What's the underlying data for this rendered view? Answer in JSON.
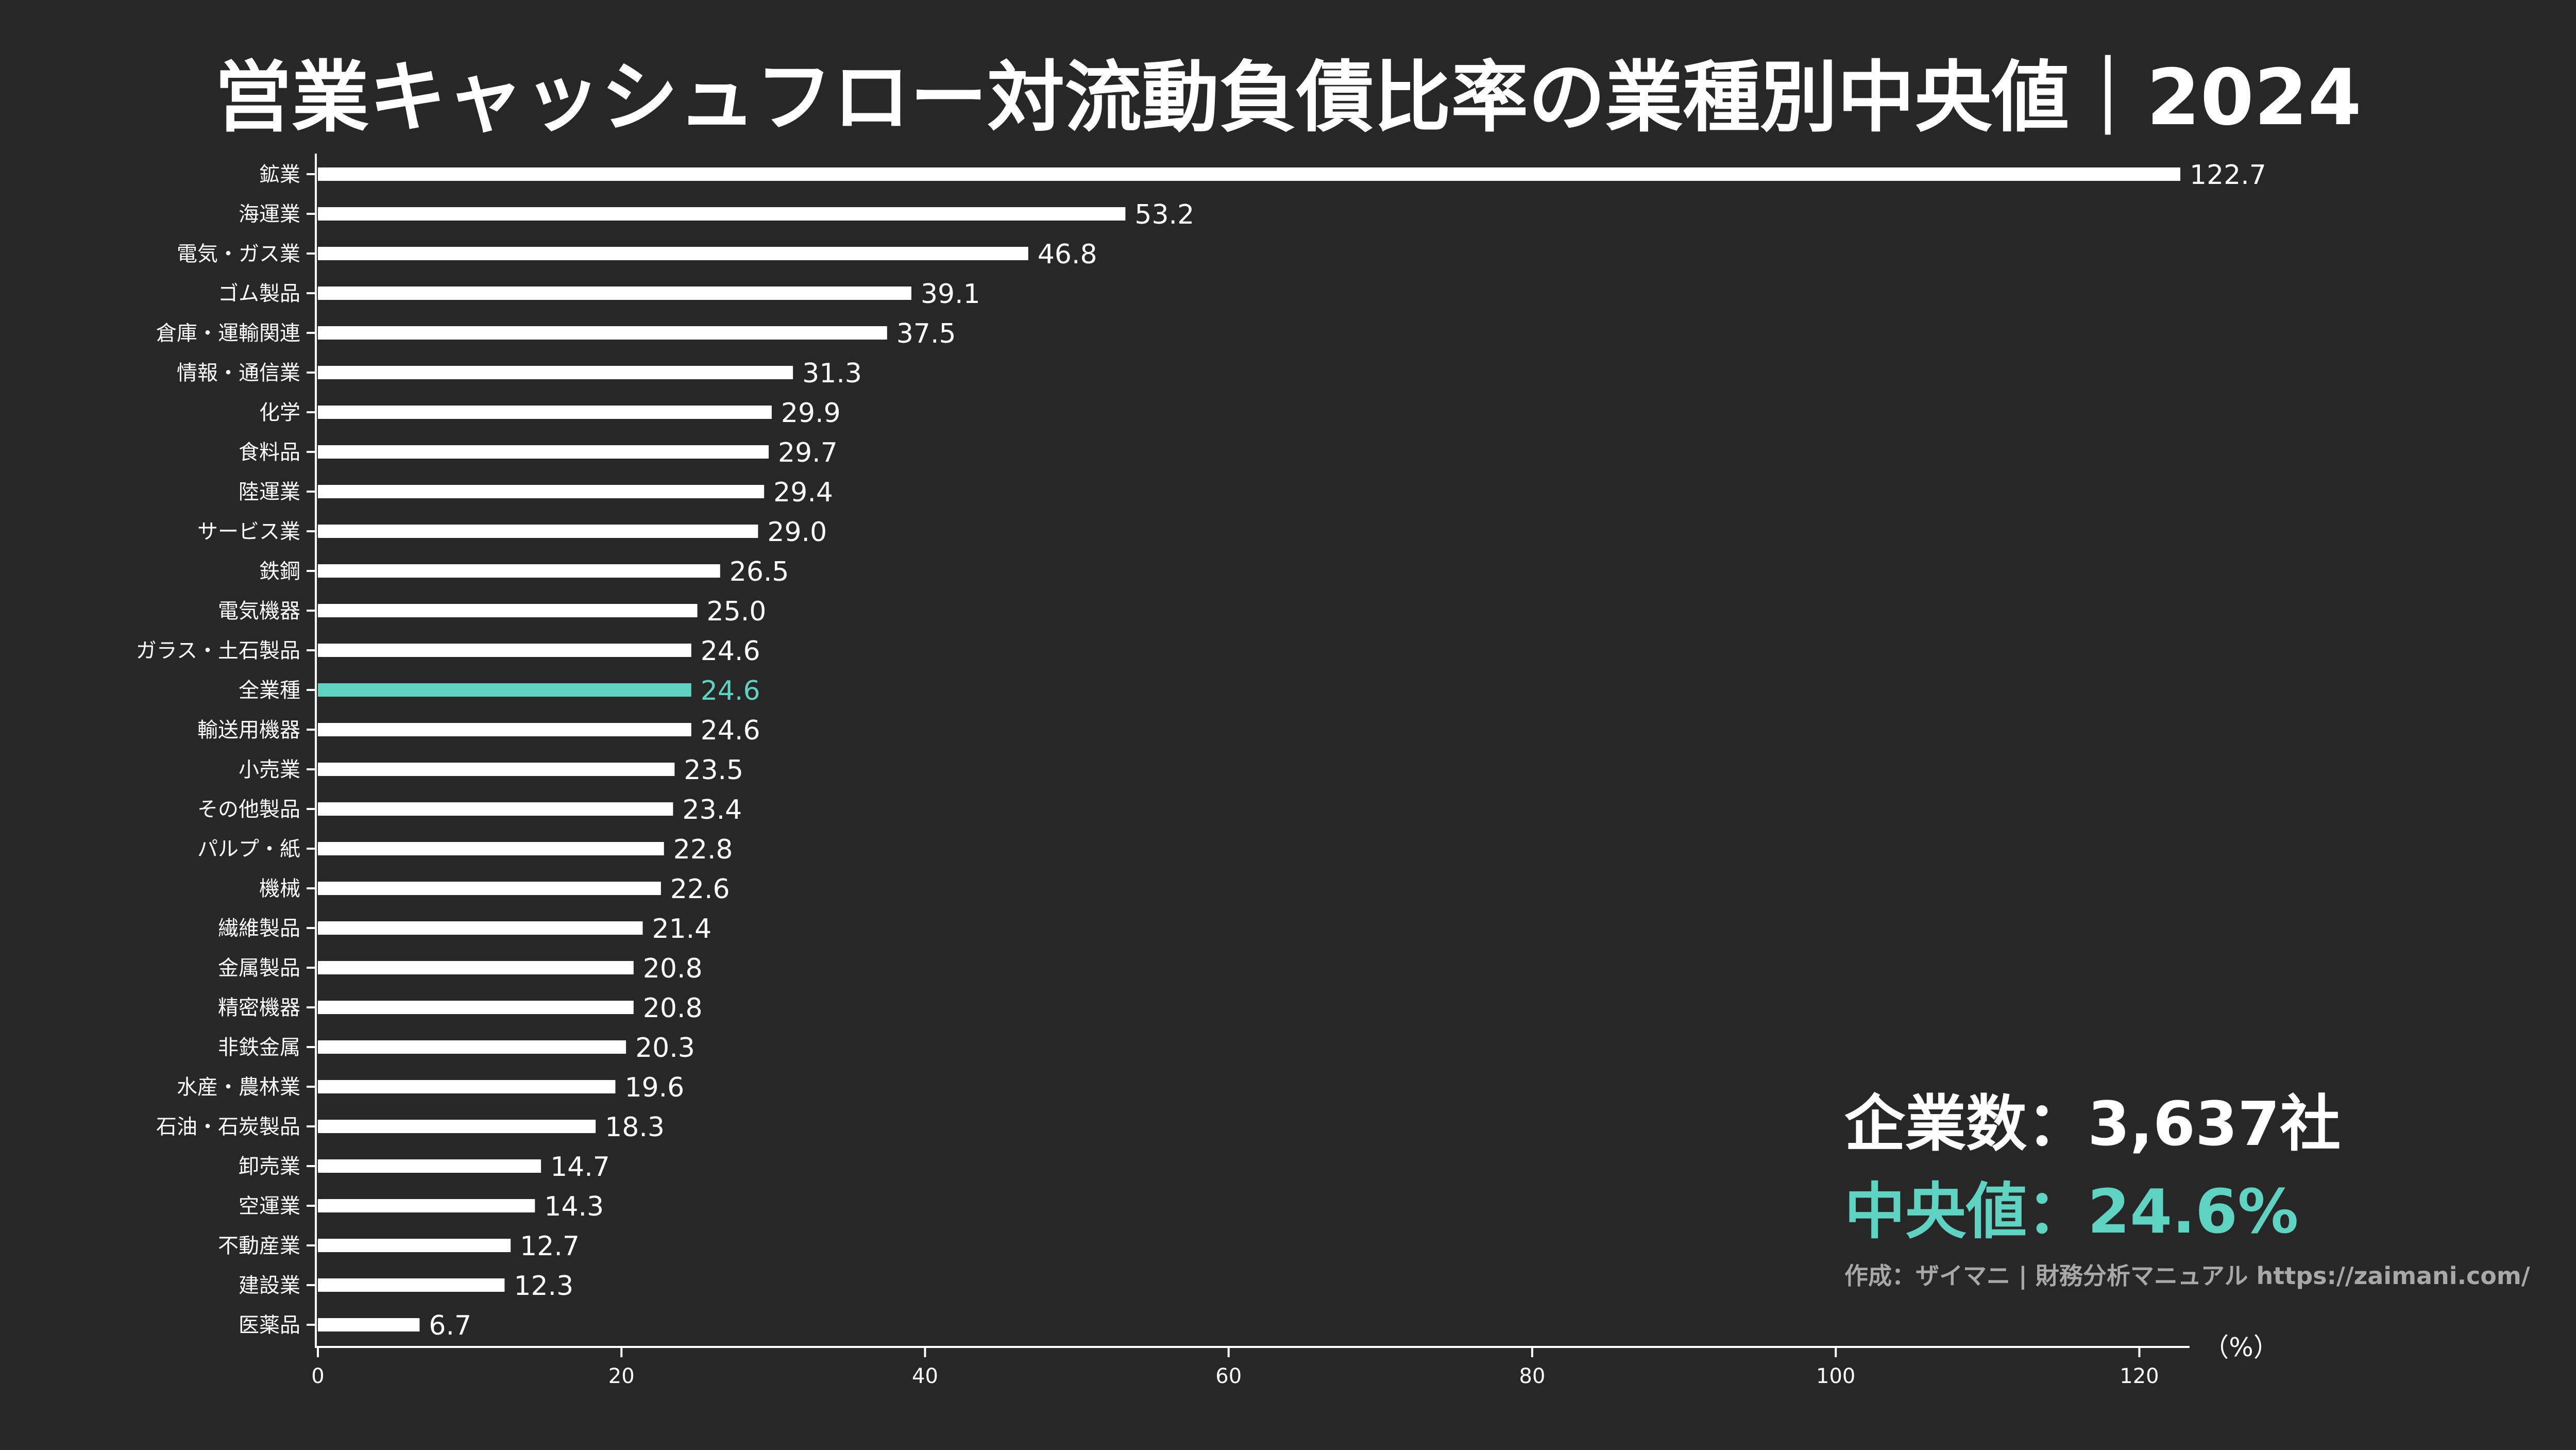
{
  "title": "営業キャッシュフロー対流動負債比率の業種別中央値｜2024",
  "summary": {
    "company_count": "企業数：3,637社",
    "median": "中央値：24.6%"
  },
  "credit": "作成：ザイマニ | 財務分析マニュアル https://zaimani.com/",
  "colors": {
    "background": "#272727",
    "bar": "#ffffff",
    "highlight": "#5fd3c1",
    "credit": "#a8a8a8"
  },
  "chart_data": {
    "type": "bar",
    "orientation": "horizontal",
    "unit_label": "（%）",
    "xlim": [
      0,
      122.7
    ],
    "xticks": [
      0,
      20,
      40,
      60,
      80,
      100,
      120
    ],
    "highlight_category": "全業種",
    "categories": [
      "鉱業",
      "海運業",
      "電気・ガス業",
      "ゴム製品",
      "倉庫・運輸関連",
      "情報・通信業",
      "化学",
      "食料品",
      "陸運業",
      "サービス業",
      "鉄鋼",
      "電気機器",
      "ガラス・土石製品",
      "全業種",
      "輸送用機器",
      "小売業",
      "その他製品",
      "パルプ・紙",
      "機械",
      "繊維製品",
      "金属製品",
      "精密機器",
      "非鉄金属",
      "水産・農林業",
      "石油・石炭製品",
      "卸売業",
      "空運業",
      "不動産業",
      "建設業",
      "医薬品"
    ],
    "values": [
      122.7,
      53.2,
      46.8,
      39.1,
      37.5,
      31.3,
      29.9,
      29.7,
      29.4,
      29.0,
      26.5,
      25.0,
      24.6,
      24.6,
      24.6,
      23.5,
      23.4,
      22.8,
      22.6,
      21.4,
      20.8,
      20.8,
      20.3,
      19.6,
      18.3,
      14.7,
      14.3,
      12.7,
      12.3,
      6.7
    ],
    "value_labels": [
      "122.7",
      "53.2",
      "46.8",
      "39.1",
      "37.5",
      "31.3",
      "29.9",
      "29.7",
      "29.4",
      "29.0",
      "26.5",
      "25.0",
      "24.6",
      "24.6",
      "24.6",
      "23.5",
      "23.4",
      "22.8",
      "22.6",
      "21.4",
      "20.8",
      "20.8",
      "20.3",
      "19.6",
      "18.3",
      "14.7",
      "14.3",
      "12.7",
      "12.3",
      "6.7"
    ]
  }
}
